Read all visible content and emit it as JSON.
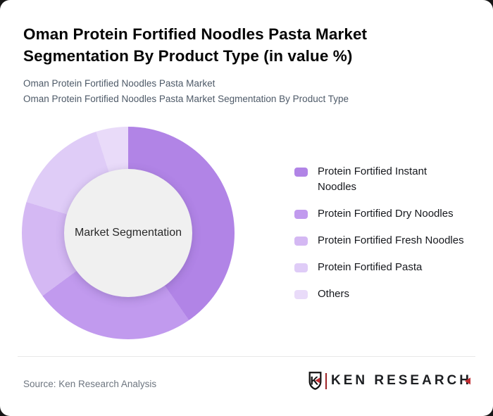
{
  "card": {
    "title": "Oman Protein Fortified Noodles Pasta Market Segmentation By Product Type (in value %)",
    "subtitle_line1": "Oman Protein Fortified Noodles Pasta Market",
    "subtitle_line2": "Oman Protein Fortified Noodles Pasta Market Segmentation By Product Type",
    "source": "Source: Ken Research Analysis",
    "brand": {
      "emblem_letter": "K",
      "wordmark_first_letter": "K",
      "wordmark_rest": "EN RESEARCH",
      "accent_red": "#c12b31",
      "bar_color": "#9e2326",
      "text_color": "#1d1f22"
    }
  },
  "chart_data": {
    "type": "pie",
    "subtype": "donut",
    "title": "Oman Protein Fortified Noodles Pasta Market Segmentation By Product Type (in value %)",
    "center_label": "Market Segmentation",
    "legend_position": "right",
    "unit": "value %",
    "start_angle_deg": 0,
    "direction": "clockwise",
    "categories": [
      "Protein Fortified Instant Noodles",
      "Protein Fortified Dry Noodles",
      "Protein Fortified Fresh Noodles",
      "Protein Fortified Pasta",
      "Others"
    ],
    "values": [
      40.3,
      24.6,
      14.8,
      15.4,
      4.9
    ],
    "approx_values": [
      40,
      25,
      15,
      15,
      5
    ],
    "colors": [
      "#b184e6",
      "#c19aee",
      "#d4b8f3",
      "#dfccf7",
      "#e9dbf9"
    ],
    "hole_color": "#f0f0f0"
  }
}
